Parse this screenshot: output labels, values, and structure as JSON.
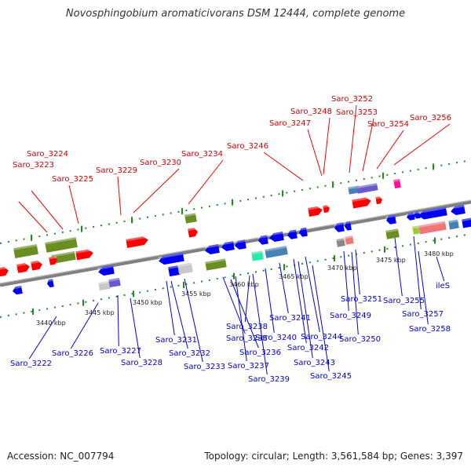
{
  "title": "Novosphingobium aromaticivorans DSM 12444, complete genome",
  "footer": {
    "accession": "Accession: NC_007794",
    "stats": "Topology: circular; Length: 3,561,584 bp; Genes: 3,397"
  },
  "colors": {
    "leader_red": "#ee0000",
    "leader_blue": "#0000dd",
    "forward_gene": "#ff0000",
    "reverse_gene": "#0000ee",
    "cds_green": "#6b8e23",
    "teal": "#2ee8a8",
    "steel": "#4682b4",
    "slate": "#6a5acd",
    "pink": "#ff1493",
    "salmon": "#ee7777",
    "grey": "#888888",
    "light_grey": "#c8c8c8",
    "lime": "#9acd32",
    "axis": "#808080",
    "tick": "#228b22"
  },
  "scale_labels": [
    "3440 kbp",
    "3445 kbp",
    "3450 kbp",
    "3455 kbp",
    "3460 kbp",
    "3465 kbp",
    "3470 kbp",
    "3475 kbp",
    "3480 kbp"
  ],
  "genes_top": [
    "Saro_3224",
    "Saro_3223",
    "Saro_3225",
    "Saro_3229",
    "Saro_3230",
    "Saro_3234",
    "Saro_3246",
    "Saro_3247",
    "Saro_3248",
    "Saro_3252",
    "Saro_3253",
    "Saro_3254",
    "Saro_3256"
  ],
  "genes_bottom": [
    "Saro_3222",
    "Saro_3226",
    "Saro_3227",
    "Saro_3228",
    "Saro_3231",
    "Saro_3232",
    "Saro_3233",
    "Saro_3235",
    "Saro_3236",
    "Saro_3237",
    "Saro_3238",
    "Saro_3239",
    "Saro_3240",
    "Saro_3241",
    "Saro_3242",
    "Saro_3243",
    "Saro_3244",
    "Saro_3245",
    "Saro_3249",
    "Saro_3250",
    "Saro_3251",
    "Saro_3255",
    "Saro_3257",
    "Saro_3258",
    "ileS"
  ]
}
